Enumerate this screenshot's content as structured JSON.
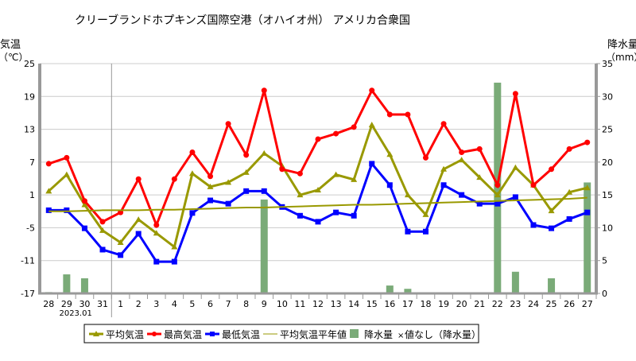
{
  "chart_data": {
    "type": "line+bar",
    "title": "クリーブランドホプキンズ国際空港（オハイオ州） アメリカ合衆国",
    "ylabel_left": "気温",
    "ylabel_left_unit": "（℃）",
    "ylabel_right": "降水量",
    "ylabel_right_unit": "（mm）",
    "ylim_left": [
      -17,
      25
    ],
    "yticks_left": [
      25,
      19,
      13,
      7,
      1,
      -5,
      -11,
      -17
    ],
    "ylim_right": [
      0,
      35
    ],
    "yticks_right": [
      35,
      30,
      25,
      20,
      15,
      10,
      5,
      0
    ],
    "grid": true,
    "month_label": "2023.01",
    "categories": [
      "28",
      "29",
      "30",
      "31",
      "1",
      "2",
      "3",
      "4",
      "5",
      "6",
      "7",
      "8",
      "9",
      "10",
      "11",
      "12",
      "13",
      "14",
      "15",
      "16",
      "17",
      "18",
      "19",
      "20",
      "21",
      "22",
      "23",
      "24",
      "25",
      "26",
      "27"
    ],
    "series": [
      {
        "name": "平均気温",
        "color": "#999900",
        "marker": "triangle",
        "values": [
          1.7,
          4.7,
          -0.8,
          -5.5,
          -7.7,
          -3.5,
          -6.0,
          -8.5,
          4.9,
          2.5,
          3.3,
          5.1,
          8.6,
          6.3,
          1.0,
          1.9,
          4.7,
          3.8,
          13.8,
          8.4,
          1.0,
          -2.6,
          5.7,
          7.4,
          4.2,
          1.0,
          6.0,
          2.8,
          -1.9,
          1.5,
          2.3
        ]
      },
      {
        "name": "最高気温",
        "color": "#ff0000",
        "marker": "circle",
        "values": [
          6.7,
          7.8,
          -0.1,
          -3.9,
          -2.2,
          3.9,
          -4.5,
          3.9,
          8.8,
          4.4,
          14.0,
          8.3,
          20.1,
          5.7,
          4.9,
          11.2,
          12.2,
          13.4,
          20.1,
          15.7,
          15.7,
          7.8,
          14.0,
          8.8,
          9.4,
          2.8,
          19.5,
          2.8,
          5.7,
          9.4,
          10.6
        ]
      },
      {
        "name": "最低気温",
        "color": "#0000ff",
        "marker": "square",
        "values": [
          -1.8,
          -1.8,
          -5.1,
          -9.0,
          -10.0,
          -6.1,
          -11.2,
          -11.2,
          -2.3,
          0.0,
          -0.6,
          1.7,
          1.7,
          -1.2,
          -2.8,
          -3.9,
          -2.2,
          -2.8,
          6.7,
          2.8,
          -5.7,
          -5.7,
          2.8,
          1.0,
          -0.6,
          -0.6,
          0.6,
          -4.5,
          -5.1,
          -3.4,
          -2.2
        ]
      },
      {
        "name": "平均気温平年値",
        "color": "#999900",
        "marker": "none",
        "values": [
          -2.0,
          -2.0,
          -1.9,
          -1.8,
          -1.8,
          -1.8,
          -1.7,
          -1.7,
          -1.6,
          -1.5,
          -1.4,
          -1.3,
          -1.3,
          -1.2,
          -1.1,
          -1.0,
          -0.9,
          -0.8,
          -0.8,
          -0.7,
          -0.6,
          -0.5,
          -0.4,
          -0.3,
          -0.2,
          -0.1,
          0.0,
          0.1,
          0.2,
          0.3,
          0.5
        ]
      },
      {
        "name": "降水量",
        "color": "#7aab78",
        "axis": "right",
        "type": "bar",
        "values": [
          0.2,
          2.9,
          2.3,
          0,
          0,
          0,
          0,
          0,
          0,
          0,
          0,
          0,
          14.3,
          0,
          0,
          0,
          0,
          0,
          0,
          1.2,
          0.7,
          0,
          0,
          0,
          0,
          32.1,
          3.3,
          0,
          2.3,
          0,
          16.9
        ]
      }
    ],
    "legend": {
      "placement": "bottom",
      "items": [
        "平均気温",
        "最高気温",
        "最低気温",
        "平均気温平年値",
        "降水量"
      ],
      "missing_marker": "×",
      "missing_label": "値なし（降水量）"
    }
  }
}
